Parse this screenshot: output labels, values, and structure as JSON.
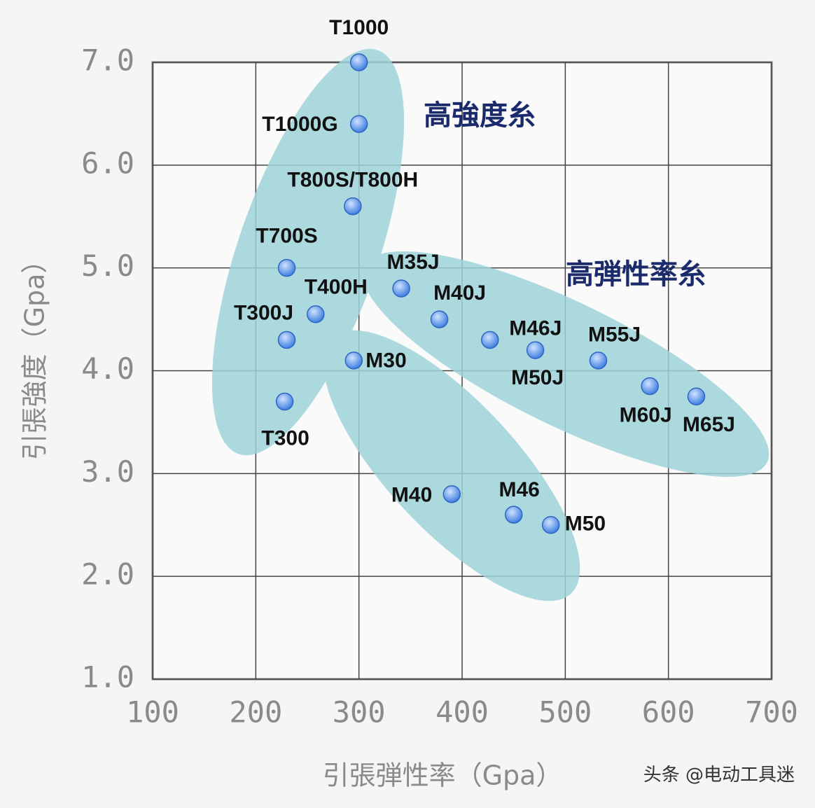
{
  "chart_data": {
    "type": "scatter",
    "x_label": "引張弾性率（Gpa）",
    "y_label": "引張強度（Gpa）",
    "annotations": [
      "高強度糸",
      "高弾性率糸"
    ],
    "watermark": "头条 @电动工具迷",
    "point_labels": [
      "T1000",
      "T1000G",
      "T800S/T800H",
      "T700S",
      "T400H",
      "T300J",
      "T300",
      "M30",
      "M35J",
      "M40J",
      "M46J",
      "M50J",
      "M55J",
      "M60J",
      "M65J",
      "M40",
      "M46",
      "M50"
    ],
    "x": [
      300,
      300,
      294,
      230,
      258,
      230,
      228,
      295,
      341,
      378,
      427,
      471,
      532,
      582,
      627,
      390,
      450,
      486
    ],
    "values": [
      7.0,
      6.4,
      5.6,
      5.0,
      4.55,
      4.3,
      3.7,
      4.1,
      4.8,
      4.5,
      4.3,
      4.2,
      4.1,
      3.85,
      3.75,
      2.8,
      2.6,
      2.5
    ],
    "color": "#3f7fe0",
    "xlim": [
      100,
      700
    ],
    "xticks": [
      100,
      200,
      300,
      400,
      500,
      600,
      700
    ],
    "ylim": [
      1,
      7
    ],
    "yticks": [
      {
        "value": 1,
        "label": "1.0"
      },
      {
        "value": 2,
        "label": "2.0"
      },
      {
        "value": 3,
        "label": "3.0"
      },
      {
        "value": 4,
        "label": "4.0"
      },
      {
        "value": 5,
        "label": "5.0"
      },
      {
        "value": 6,
        "label": "6.0"
      },
      {
        "value": 7,
        "label": "7.0"
      }
    ],
    "grid": true
  }
}
